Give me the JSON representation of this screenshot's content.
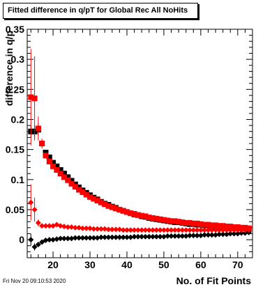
{
  "chart_data": {
    "type": "scatter",
    "title": "Fitted difference in q/pT for Global Rec All NoHits",
    "xlabel": "No. of Fit Points",
    "ylabel": "difference in q/p",
    "xlim": [
      13,
      74
    ],
    "ylim": [
      -0.03,
      0.35
    ],
    "x_ticks": [
      20,
      30,
      40,
      50,
      60,
      70
    ],
    "y_ticks": [
      0,
      0.05,
      0.1,
      0.15,
      0.2,
      0.25,
      0.3,
      0.35
    ],
    "y_tick_labels": [
      "0",
      "0.05",
      "0.1",
      "0.15",
      "0.2",
      "0.25",
      "0.3",
      "0.35"
    ],
    "grid": false,
    "series": [
      {
        "color": "#000000",
        "marker": "square",
        "x": [
          14,
          15,
          16,
          17,
          18,
          19,
          20,
          21,
          22,
          23,
          24,
          25,
          26,
          27,
          28,
          29,
          30,
          31,
          32,
          33,
          34,
          35,
          36,
          37,
          38,
          39,
          40,
          41,
          42,
          43,
          44,
          45,
          46,
          47,
          48,
          49,
          50,
          51,
          52,
          53,
          54,
          55,
          56,
          57,
          58,
          59,
          60,
          61,
          62,
          63,
          64,
          65,
          66,
          67,
          68,
          69,
          70,
          71,
          72,
          73
        ],
        "y": [
          0.18,
          0.18,
          0.183,
          0.16,
          0.145,
          0.137,
          0.128,
          0.122,
          0.116,
          0.11,
          0.104,
          0.098,
          0.092,
          0.087,
          0.082,
          0.078,
          0.074,
          0.07,
          0.067,
          0.063,
          0.06,
          0.058,
          0.055,
          0.053,
          0.05,
          0.048,
          0.046,
          0.044,
          0.042,
          0.041,
          0.039,
          0.038,
          0.036,
          0.035,
          0.034,
          0.033,
          0.032,
          0.031,
          0.03,
          0.029,
          0.029,
          0.028,
          0.027,
          0.026,
          0.026,
          0.025,
          0.025,
          0.024,
          0.024,
          0.023,
          0.023,
          0.022,
          0.022,
          0.021,
          0.021,
          0.02,
          0.02,
          0.019,
          0.019,
          0.018
        ],
        "y_err": [
          0.01,
          0.01,
          0.01,
          0.006,
          0.004,
          0.003,
          0.003,
          0.002,
          0.002,
          0.002,
          0.002,
          0.002,
          0.002,
          0.001,
          0.001,
          0.001,
          0.001,
          0.001,
          0.001,
          0.001,
          0.001,
          0.001,
          0.001,
          0.001,
          0.001,
          0.001,
          0.001,
          0.001,
          0.001,
          0.001,
          0.001,
          0.001,
          0.001,
          0.001,
          0.001,
          0.001,
          0.001,
          0.001,
          0.001,
          0.001,
          0.001,
          0.001,
          0.001,
          0.001,
          0.001,
          0.001,
          0.001,
          0.001,
          0.001,
          0.001,
          0.001,
          0.001,
          0.001,
          0.001,
          0.001,
          0.001,
          0.001,
          0.001,
          0.001,
          0.001
        ]
      },
      {
        "color": "#ff0000",
        "marker": "square",
        "x": [
          14,
          15,
          16,
          17,
          18,
          19,
          20,
          21,
          22,
          23,
          24,
          25,
          26,
          27,
          28,
          29,
          30,
          31,
          32,
          33,
          34,
          35,
          36,
          37,
          38,
          39,
          40,
          41,
          42,
          43,
          44,
          45,
          46,
          47,
          48,
          49,
          50,
          51,
          52,
          53,
          54,
          55,
          56,
          57,
          58,
          59,
          60,
          61,
          62,
          63,
          64,
          65,
          66,
          67,
          68,
          69,
          70,
          71,
          72,
          73
        ],
        "y": [
          0.237,
          0.235,
          0.185,
          0.16,
          0.14,
          0.13,
          0.122,
          0.116,
          0.11,
          0.104,
          0.099,
          0.093,
          0.088,
          0.083,
          0.079,
          0.075,
          0.071,
          0.068,
          0.065,
          0.062,
          0.059,
          0.056,
          0.054,
          0.052,
          0.05,
          0.048,
          0.046,
          0.044,
          0.043,
          0.041,
          0.04,
          0.039,
          0.037,
          0.036,
          0.035,
          0.034,
          0.033,
          0.032,
          0.031,
          0.031,
          0.03,
          0.029,
          0.028,
          0.028,
          0.027,
          0.027,
          0.026,
          0.025,
          0.025,
          0.024,
          0.024,
          0.023,
          0.023,
          0.022,
          0.022,
          0.021,
          0.021,
          0.02,
          0.02,
          0.019
        ],
        "y_err": [
          0.08,
          0.07,
          0.02,
          0.008,
          0.005,
          0.004,
          0.003,
          0.002,
          0.002,
          0.002,
          0.002,
          0.002,
          0.001,
          0.001,
          0.001,
          0.001,
          0.001,
          0.001,
          0.001,
          0.001,
          0.001,
          0.001,
          0.001,
          0.001,
          0.001,
          0.001,
          0.001,
          0.001,
          0.001,
          0.001,
          0.001,
          0.001,
          0.001,
          0.001,
          0.001,
          0.001,
          0.001,
          0.001,
          0.001,
          0.001,
          0.001,
          0.001,
          0.001,
          0.001,
          0.001,
          0.001,
          0.001,
          0.001,
          0.001,
          0.001,
          0.001,
          0.001,
          0.001,
          0.001,
          0.001,
          0.001,
          0.001,
          0.001,
          0.001,
          0.001
        ]
      },
      {
        "color": "#000000",
        "marker": "diamond",
        "x": [
          14,
          15,
          16,
          17,
          18,
          19,
          20,
          21,
          22,
          23,
          24,
          25,
          26,
          27,
          28,
          29,
          30,
          31,
          32,
          33,
          34,
          35,
          36,
          37,
          38,
          39,
          40,
          41,
          42,
          43,
          44,
          45,
          46,
          47,
          48,
          49,
          50,
          51,
          52,
          53,
          54,
          55,
          56,
          57,
          58,
          59,
          60,
          61,
          62,
          63,
          64,
          65,
          66,
          67,
          68,
          69,
          70,
          71,
          72,
          73
        ],
        "y": [
          0.0,
          -0.012,
          -0.008,
          -0.004,
          -0.001,
          0.0,
          0.0,
          0.001,
          0.002,
          0.002,
          0.002,
          0.002,
          0.003,
          0.003,
          0.003,
          0.003,
          0.003,
          0.003,
          0.003,
          0.004,
          0.004,
          0.004,
          0.004,
          0.004,
          0.004,
          0.004,
          0.004,
          0.004,
          0.005,
          0.005,
          0.005,
          0.005,
          0.005,
          0.005,
          0.005,
          0.005,
          0.005,
          0.006,
          0.006,
          0.006,
          0.006,
          0.006,
          0.006,
          0.007,
          0.007,
          0.007,
          0.007,
          0.008,
          0.008,
          0.008,
          0.008,
          0.009,
          0.009,
          0.009,
          0.01,
          0.01,
          0.01,
          0.011,
          0.011,
          0.012
        ],
        "y_err": [
          0.01,
          0.006,
          0.004,
          0.002,
          0.001,
          0.001,
          0.001,
          0.001,
          0.001,
          0.001,
          0.001,
          0.001,
          0.001,
          0.001,
          0.001,
          0.001,
          0.001,
          0.001,
          0.001,
          0.001,
          0.001,
          0.001,
          0.001,
          0.001,
          0.001,
          0.001,
          0.001,
          0.001,
          0.001,
          0.001,
          0.001,
          0.001,
          0.001,
          0.001,
          0.001,
          0.001,
          0.001,
          0.001,
          0.001,
          0.001,
          0.001,
          0.001,
          0.001,
          0.001,
          0.001,
          0.001,
          0.001,
          0.001,
          0.001,
          0.001,
          0.001,
          0.001,
          0.001,
          0.001,
          0.001,
          0.001,
          0.001,
          0.001,
          0.001,
          0.001
        ]
      },
      {
        "color": "#ff0000",
        "marker": "diamond",
        "x": [
          14,
          15,
          16,
          17,
          18,
          19,
          20,
          21,
          22,
          23,
          24,
          25,
          26,
          27,
          28,
          29,
          30,
          31,
          32,
          33,
          34,
          35,
          36,
          37,
          38,
          39,
          40,
          41,
          42,
          43,
          44,
          45,
          46,
          47,
          48,
          49,
          50,
          51,
          52,
          53,
          54,
          55,
          56,
          57,
          58,
          59,
          60,
          61,
          62,
          63,
          64,
          65,
          66,
          67,
          68,
          69,
          70,
          71,
          72,
          73
        ],
        "y": [
          0.062,
          0.05,
          0.028,
          0.023,
          0.023,
          0.023,
          0.023,
          0.025,
          0.023,
          0.022,
          0.021,
          0.021,
          0.02,
          0.02,
          0.019,
          0.019,
          0.019,
          0.018,
          0.018,
          0.018,
          0.018,
          0.017,
          0.017,
          0.017,
          0.017,
          0.016,
          0.016,
          0.016,
          0.016,
          0.016,
          0.016,
          0.016,
          0.016,
          0.016,
          0.016,
          0.016,
          0.016,
          0.016,
          0.016,
          0.016,
          0.016,
          0.016,
          0.016,
          0.016,
          0.016,
          0.016,
          0.016,
          0.016,
          0.016,
          0.016,
          0.016,
          0.016,
          0.016,
          0.016,
          0.016,
          0.016,
          0.016,
          0.016,
          0.016,
          0.016
        ],
        "y_err": [
          0.03,
          0.02,
          0.006,
          0.003,
          0.002,
          0.002,
          0.002,
          0.001,
          0.001,
          0.001,
          0.001,
          0.001,
          0.001,
          0.001,
          0.001,
          0.001,
          0.001,
          0.001,
          0.001,
          0.001,
          0.001,
          0.001,
          0.001,
          0.001,
          0.001,
          0.001,
          0.001,
          0.001,
          0.001,
          0.001,
          0.001,
          0.001,
          0.001,
          0.001,
          0.001,
          0.001,
          0.001,
          0.001,
          0.001,
          0.001,
          0.001,
          0.001,
          0.001,
          0.001,
          0.001,
          0.001,
          0.001,
          0.001,
          0.001,
          0.001,
          0.001,
          0.001,
          0.001,
          0.001,
          0.001,
          0.001,
          0.001,
          0.001,
          0.001,
          0.001
        ]
      }
    ]
  },
  "footer": {
    "timestamp": "Fri Nov 20 09:10:53 2020"
  }
}
